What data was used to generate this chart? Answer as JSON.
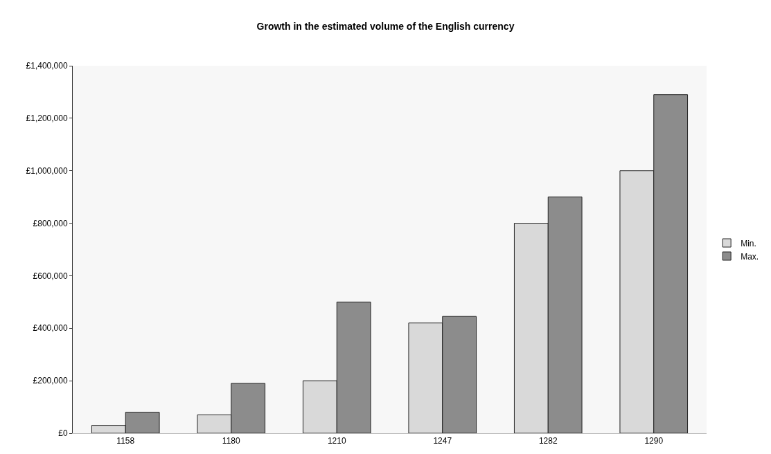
{
  "chart_data": {
    "type": "bar",
    "title": "Growth in the estimated volume of the English currency",
    "categories": [
      "1158",
      "1180",
      "1210",
      "1247",
      "1282",
      "1290"
    ],
    "series": [
      {
        "name": "Min.",
        "color": "#d9d9d9",
        "values": [
          30000,
          70000,
          200000,
          420000,
          800000,
          1000000
        ]
      },
      {
        "name": "Max.",
        "color": "#8c8c8c",
        "values": [
          80000,
          190000,
          500000,
          445000,
          900000,
          1290000
        ]
      }
    ],
    "ylim": [
      0,
      1400000
    ],
    "yticks": [
      {
        "value": 0,
        "label": "£0"
      },
      {
        "value": 200000,
        "label": "£200,000"
      },
      {
        "value": 400000,
        "label": "£400,000"
      },
      {
        "value": 600000,
        "label": "£600,000"
      },
      {
        "value": 800000,
        "label": "£800,000"
      },
      {
        "value": 1000000,
        "label": "£1,000,000"
      },
      {
        "value": 1200000,
        "label": "£1,200,000"
      },
      {
        "value": 1400000,
        "label": "£1,400,000"
      }
    ],
    "grid": false,
    "legend": "right"
  }
}
